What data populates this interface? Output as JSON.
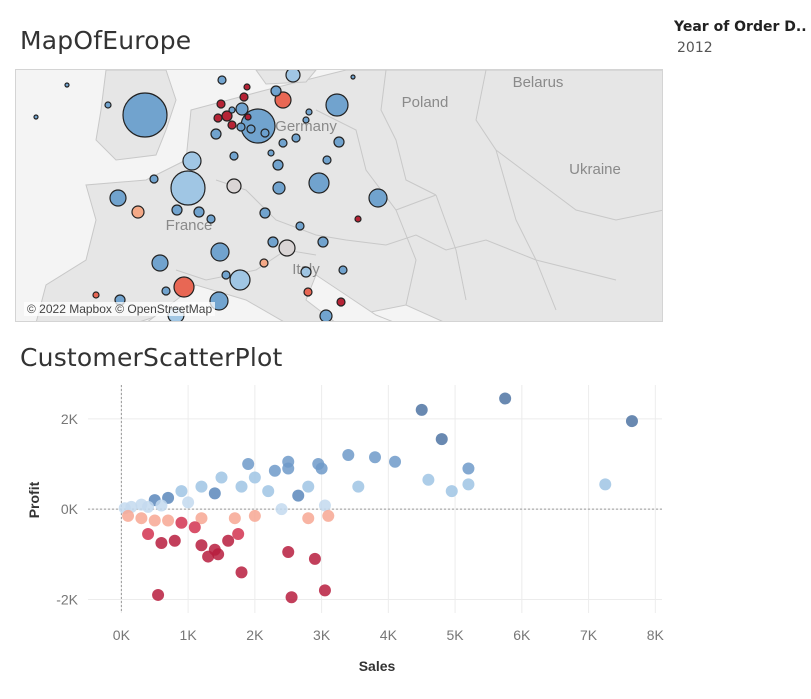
{
  "dashboard": {
    "map_title": "MapOfEurope",
    "scatter_title": "CustomerScatterPlot"
  },
  "filter": {
    "title": "Year of Order D..",
    "value": "2012"
  },
  "map": {
    "attribution": "© 2022 Mapbox © OpenStreetMap",
    "place_labels": [
      "Belarus",
      "Poland",
      "Germany",
      "Ukraine",
      "France",
      "Italy"
    ],
    "colors": {
      "land": "#e6e6e6",
      "sea": "#f4f4f4",
      "border": "#c8c8c8",
      "dark_blue": "#4e79a7",
      "mid_blue": "#6a9fcc",
      "light_blue": "#9cc4e4",
      "neutral": "#d9d4d4",
      "light_red": "#f4a582",
      "red": "#e8604c",
      "dark_red": "#b2182b"
    }
  },
  "chart_data": {
    "type": "scatter",
    "title": "",
    "xlabel": "Sales",
    "ylabel": "Profit",
    "xlim": [
      -500,
      8100
    ],
    "ylim": [
      -2300,
      2750
    ],
    "x_ticks": [
      "0K",
      "1K",
      "2K",
      "3K",
      "4K",
      "5K",
      "6K",
      "7K",
      "8K"
    ],
    "y_ticks": [
      "2K",
      "0K",
      "-2K"
    ],
    "color_scale": "diverging red (loss) to blue (profit)",
    "points": [
      [
        4500,
        2200
      ],
      [
        5750,
        2450
      ],
      [
        7650,
        1950
      ],
      [
        4800,
        1550
      ],
      [
        3400,
        1200
      ],
      [
        3800,
        1150
      ],
      [
        4100,
        1050
      ],
      [
        5200,
        900
      ],
      [
        4600,
        650
      ],
      [
        5200,
        550
      ],
      [
        4950,
        400
      ],
      [
        3550,
        500
      ],
      [
        7250,
        550
      ],
      [
        3050,
        80
      ],
      [
        3100,
        -150
      ],
      [
        2800,
        -200
      ],
      [
        2400,
        0
      ],
      [
        2000,
        -150
      ],
      [
        1700,
        -200
      ],
      [
        1200,
        -200
      ],
      [
        2500,
        1050
      ],
      [
        2500,
        900
      ],
      [
        2300,
        850
      ],
      [
        2000,
        700
      ],
      [
        1900,
        1000
      ],
      [
        1500,
        700
      ],
      [
        1200,
        500
      ],
      [
        900,
        400
      ],
      [
        700,
        250
      ],
      [
        500,
        200
      ],
      [
        300,
        100
      ],
      [
        150,
        50
      ],
      [
        50,
        20
      ],
      [
        2650,
        300
      ],
      [
        2200,
        400
      ],
      [
        2800,
        500
      ],
      [
        3000,
        900
      ],
      [
        2950,
        1000
      ],
      [
        1800,
        500
      ],
      [
        1400,
        350
      ],
      [
        1000,
        150
      ],
      [
        600,
        80
      ],
      [
        400,
        50
      ],
      [
        100,
        -150
      ],
      [
        300,
        -200
      ],
      [
        500,
        -250
      ],
      [
        700,
        -250
      ],
      [
        900,
        -300
      ],
      [
        1100,
        -400
      ],
      [
        400,
        -550
      ],
      [
        800,
        -700
      ],
      [
        1200,
        -800
      ],
      [
        1400,
        -900
      ],
      [
        1600,
        -700
      ],
      [
        1750,
        -550
      ],
      [
        600,
        -750
      ],
      [
        1300,
        -1050
      ],
      [
        1450,
        -1000
      ],
      [
        1800,
        -1400
      ],
      [
        2500,
        -950
      ],
      [
        2900,
        -1100
      ],
      [
        3050,
        -1800
      ],
      [
        2550,
        -1950
      ],
      [
        550,
        -1900
      ]
    ]
  }
}
